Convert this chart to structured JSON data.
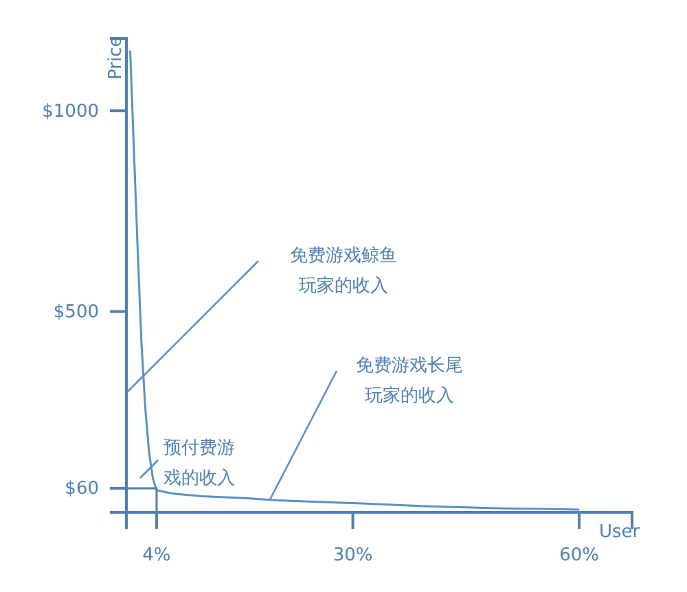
{
  "chart_data": {
    "type": "line",
    "xlabel": "User",
    "ylabel": "Price",
    "xlim": [
      0,
      67
    ],
    "ylim": [
      0,
      1180
    ],
    "xticks": [
      {
        "value": 4,
        "label": "4%"
      },
      {
        "value": 30,
        "label": "30%"
      },
      {
        "value": 60,
        "label": "60%"
      }
    ],
    "yticks": [
      {
        "value": 60,
        "label": "$60"
      },
      {
        "value": 500,
        "label": "$500"
      },
      {
        "value": 1000,
        "label": "$1000"
      }
    ],
    "series": [
      {
        "color": "#5b8fc7",
        "x": [
          0.5,
          1,
          1.5,
          2,
          2.5,
          3,
          3.5,
          4,
          6,
          10,
          16,
          20,
          30,
          40,
          50,
          60
        ],
        "values": [
          1150,
          900,
          650,
          420,
          260,
          150,
          85,
          55,
          47,
          40,
          35,
          30,
          23,
          15,
          10,
          7
        ]
      },
      {
        "color": "#4f7fb3",
        "x": [
          0,
          4,
          4
        ],
        "values": [
          60,
          60,
          0
        ]
      }
    ],
    "annotations": [
      "免费游戏鲸鱼玩家的收入",
      "预付费游戏的收入",
      {
        "text": "免费游戏长尾玩家的收入",
        "x": 19,
        "y": 31
      }
    ],
    "grid": false,
    "marker": "none",
    "line_style": "solid"
  }
}
